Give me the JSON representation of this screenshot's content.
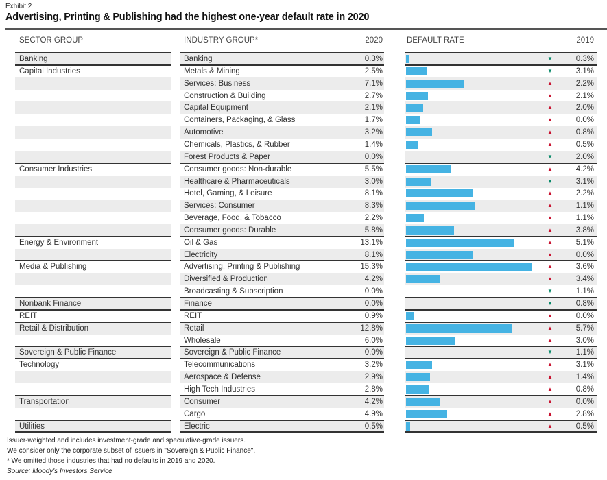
{
  "exhibit_label": "Exhibit 2",
  "title": "Advertising, Printing & Publishing had the highest one-year default rate in 2020",
  "colors": {
    "bar": "#45b3e3",
    "up": "#c8102e",
    "down": "#0a8a6a",
    "shade": "#ececec"
  },
  "chart_data": {
    "type": "table",
    "columns": [
      "SECTOR GROUP",
      "INDUSTRY GROUP*",
      "2020",
      "DEFAULT RATE",
      "2019"
    ],
    "rows": [
      {
        "sector": "Banking",
        "industry": "Banking",
        "v2020": 0.3,
        "t2020": "0.3%",
        "trend": "down",
        "t2019": "0.3%"
      },
      {
        "sector": "Capital Industries",
        "industry": "Metals & Mining",
        "v2020": 2.5,
        "t2020": "2.5%",
        "trend": "down",
        "t2019": "3.1%"
      },
      {
        "sector": "",
        "industry": "Services: Business",
        "v2020": 7.1,
        "t2020": "7.1%",
        "trend": "up",
        "t2019": "2.2%"
      },
      {
        "sector": "",
        "industry": "Construction & Building",
        "v2020": 2.7,
        "t2020": "2.7%",
        "trend": "up",
        "t2019": "2.1%"
      },
      {
        "sector": "",
        "industry": "Capital Equipment",
        "v2020": 2.1,
        "t2020": "2.1%",
        "trend": "up",
        "t2019": "2.0%"
      },
      {
        "sector": "",
        "industry": "Containers, Packaging, & Glass",
        "v2020": 1.7,
        "t2020": "1.7%",
        "trend": "up",
        "t2019": "0.0%"
      },
      {
        "sector": "",
        "industry": "Automotive",
        "v2020": 3.2,
        "t2020": "3.2%",
        "trend": "up",
        "t2019": "0.8%"
      },
      {
        "sector": "",
        "industry": "Chemicals, Plastics, & Rubber",
        "v2020": 1.4,
        "t2020": "1.4%",
        "trend": "up",
        "t2019": "0.5%"
      },
      {
        "sector": "",
        "industry": "Forest Products & Paper",
        "v2020": 0.0,
        "t2020": "0.0%",
        "trend": "down",
        "t2019": "2.0%"
      },
      {
        "sector": "Consumer Industries",
        "industry": "Consumer goods: Non-durable",
        "v2020": 5.5,
        "t2020": "5.5%",
        "trend": "up",
        "t2019": "4.2%"
      },
      {
        "sector": "",
        "industry": "Healthcare & Pharmaceuticals",
        "v2020": 3.0,
        "t2020": "3.0%",
        "trend": "down",
        "t2019": "3.1%"
      },
      {
        "sector": "",
        "industry": "Hotel, Gaming, & Leisure",
        "v2020": 8.1,
        "t2020": "8.1%",
        "trend": "up",
        "t2019": "2.2%"
      },
      {
        "sector": "",
        "industry": "Services: Consumer",
        "v2020": 8.3,
        "t2020": "8.3%",
        "trend": "up",
        "t2019": "1.1%"
      },
      {
        "sector": "",
        "industry": "Beverage, Food, & Tobacco",
        "v2020": 2.2,
        "t2020": "2.2%",
        "trend": "up",
        "t2019": "1.1%"
      },
      {
        "sector": "",
        "industry": "Consumer goods: Durable",
        "v2020": 5.8,
        "t2020": "5.8%",
        "trend": "up",
        "t2019": "3.8%"
      },
      {
        "sector": "Energy & Environment",
        "industry": "Oil & Gas",
        "v2020": 13.1,
        "t2020": "13.1%",
        "trend": "up",
        "t2019": "5.1%"
      },
      {
        "sector": "",
        "industry": "Electricity",
        "v2020": 8.1,
        "t2020": "8.1%",
        "trend": "up",
        "t2019": "0.0%"
      },
      {
        "sector": "Media & Publishing",
        "industry": "Advertising, Printing & Publishing",
        "v2020": 15.3,
        "t2020": "15.3%",
        "trend": "up",
        "t2019": "3.6%"
      },
      {
        "sector": "",
        "industry": "Diversified & Production",
        "v2020": 4.2,
        "t2020": "4.2%",
        "trend": "up",
        "t2019": "3.4%"
      },
      {
        "sector": "",
        "industry": "Broadcasting & Subscription",
        "v2020": 0.0,
        "t2020": "0.0%",
        "trend": "down",
        "t2019": "1.1%"
      },
      {
        "sector": "Nonbank Finance",
        "industry": "Finance",
        "v2020": 0.0,
        "t2020": "0.0%",
        "trend": "down",
        "t2019": "0.8%"
      },
      {
        "sector": "REIT",
        "industry": "REIT",
        "v2020": 0.9,
        "t2020": "0.9%",
        "trend": "up",
        "t2019": "0.0%"
      },
      {
        "sector": "Retail & Distribution",
        "industry": "Retail",
        "v2020": 12.8,
        "t2020": "12.8%",
        "trend": "up",
        "t2019": "5.7%"
      },
      {
        "sector": "",
        "industry": "Wholesale",
        "v2020": 6.0,
        "t2020": "6.0%",
        "trend": "up",
        "t2019": "3.0%"
      },
      {
        "sector": "Sovereign & Public Finance",
        "industry": "Sovereign & Public Finance",
        "v2020": 0.0,
        "t2020": "0.0%",
        "trend": "down",
        "t2019": "1.1%"
      },
      {
        "sector": "Technology",
        "industry": "Telecommunications",
        "v2020": 3.2,
        "t2020": "3.2%",
        "trend": "up",
        "t2019": "3.1%"
      },
      {
        "sector": "",
        "industry": "Aerospace & Defense",
        "v2020": 2.9,
        "t2020": "2.9%",
        "trend": "up",
        "t2019": "1.4%"
      },
      {
        "sector": "",
        "industry": "High Tech Industries",
        "v2020": 2.8,
        "t2020": "2.8%",
        "trend": "up",
        "t2019": "0.8%"
      },
      {
        "sector": "Transportation",
        "industry": "Consumer",
        "v2020": 4.2,
        "t2020": "4.2%",
        "trend": "up",
        "t2019": "0.0%"
      },
      {
        "sector": "",
        "industry": "Cargo",
        "v2020": 4.9,
        "t2020": "4.9%",
        "trend": "up",
        "t2019": "2.8%"
      },
      {
        "sector": "Utilities",
        "industry": "Electric",
        "v2020": 0.5,
        "t2020": "0.5%",
        "trend": "up",
        "t2019": "0.5%"
      }
    ]
  },
  "footnotes": [
    "Issuer-weighted and includes investment-grade and speculative-grade issuers.",
    "We consider only the corporate subset of issuers in \"Sovereign & Public Finance\".",
    "* We omitted those industries that had no defaults in 2019 and 2020."
  ],
  "source": "Source: Moody's Investors Service"
}
